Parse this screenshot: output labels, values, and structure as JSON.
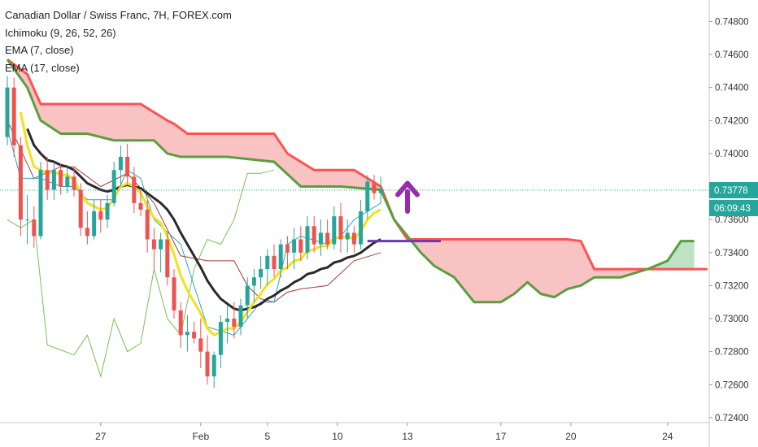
{
  "legend": {
    "title": "Canadian Dollar / Swiss Franc, 7H, FOREX.com",
    "ichimoku": "Ichimoku (9, 26, 52, 26)",
    "ema7": "EMA (7, close)",
    "ema17": "EMA (17, close)"
  },
  "colors": {
    "up": "#26a69a",
    "down": "#ef5350",
    "ema7": "#f5e11a",
    "ema17": "#2a2a2a",
    "kumo_bear_fill": "#f9bcbc",
    "kumo_bull_fill": "#b7e0be",
    "senkou_a": "#ff5252",
    "senkou_b": "#5b9e3f",
    "tenkan": "#27a8b8",
    "kijun": "#a23b3b",
    "chikou": "#7cbf4f",
    "arrow": "#9c27b0",
    "level_line": "#673ab7",
    "price_tag": "#26a69a"
  },
  "chart_data": {
    "type": "candlestick",
    "title": "Canadian Dollar / Swiss Franc, 7H, FOREX.com",
    "ylim": [
      0.7237,
      0.7493
    ],
    "y_ticks": [
      "0.74800",
      "0.74600",
      "0.74400",
      "0.74200",
      "0.74000",
      "0.73600",
      "0.73400",
      "0.73200",
      "0.73000",
      "0.72800",
      "0.72600",
      "0.72400"
    ],
    "x_ticks": [
      "27",
      "Feb",
      "5",
      "10",
      "13",
      "17",
      "20",
      "24"
    ],
    "last_price": "0.73778",
    "countdown": "06:09:43",
    "candles": [
      [
        0.741,
        0.7447,
        0.7405,
        0.744
      ],
      [
        0.744,
        0.7446,
        0.7398,
        0.7405
      ],
      [
        0.7405,
        0.741,
        0.735,
        0.736
      ],
      [
        0.736,
        0.7375,
        0.7345,
        0.736
      ],
      [
        0.736,
        0.7368,
        0.7343,
        0.735
      ],
      [
        0.735,
        0.7395,
        0.7348,
        0.739
      ],
      [
        0.739,
        0.7398,
        0.7372,
        0.7378
      ],
      [
        0.7378,
        0.7395,
        0.7372,
        0.739
      ],
      [
        0.739,
        0.7394,
        0.7375,
        0.738
      ],
      [
        0.738,
        0.7392,
        0.7376,
        0.7386
      ],
      [
        0.7386,
        0.7392,
        0.7374,
        0.7378
      ],
      [
        0.7378,
        0.7382,
        0.735,
        0.7355
      ],
      [
        0.7355,
        0.7365,
        0.7345,
        0.735
      ],
      [
        0.735,
        0.7372,
        0.7348,
        0.7365
      ],
      [
        0.7365,
        0.7372,
        0.7352,
        0.736
      ],
      [
        0.736,
        0.7375,
        0.7355,
        0.737
      ],
      [
        0.737,
        0.7395,
        0.7368,
        0.739
      ],
      [
        0.739,
        0.7405,
        0.738,
        0.7398
      ],
      [
        0.7398,
        0.7406,
        0.7382,
        0.7386
      ],
      [
        0.7386,
        0.7392,
        0.7364,
        0.737
      ],
      [
        0.737,
        0.7378,
        0.7362,
        0.7366
      ],
      [
        0.7366,
        0.7372,
        0.734,
        0.7348
      ],
      [
        0.7348,
        0.7355,
        0.733,
        0.7342
      ],
      [
        0.7342,
        0.7352,
        0.7328,
        0.7348
      ],
      [
        0.7348,
        0.7352,
        0.732,
        0.7325
      ],
      [
        0.7325,
        0.733,
        0.73,
        0.7305
      ],
      [
        0.7305,
        0.731,
        0.7282,
        0.729
      ],
      [
        0.729,
        0.7302,
        0.728,
        0.7292
      ],
      [
        0.7292,
        0.7298,
        0.7285,
        0.7288
      ],
      [
        0.7288,
        0.73,
        0.727,
        0.728
      ],
      [
        0.728,
        0.729,
        0.726,
        0.7265
      ],
      [
        0.7265,
        0.728,
        0.7258,
        0.7278
      ],
      [
        0.7278,
        0.7302,
        0.727,
        0.7298
      ],
      [
        0.7298,
        0.7308,
        0.7285,
        0.73
      ],
      [
        0.73,
        0.731,
        0.7288,
        0.7295
      ],
      [
        0.7295,
        0.7312,
        0.729,
        0.7308
      ],
      [
        0.7308,
        0.7325,
        0.73,
        0.732
      ],
      [
        0.732,
        0.733,
        0.731,
        0.7325
      ],
      [
        0.7325,
        0.7338,
        0.7318,
        0.733
      ],
      [
        0.733,
        0.7342,
        0.732,
        0.7338
      ],
      [
        0.7338,
        0.7345,
        0.7325,
        0.733
      ],
      [
        0.733,
        0.7348,
        0.7325,
        0.7345
      ],
      [
        0.7345,
        0.735,
        0.733,
        0.734
      ],
      [
        0.734,
        0.7355,
        0.733,
        0.7348
      ],
      [
        0.7348,
        0.7356,
        0.7335,
        0.734
      ],
      [
        0.734,
        0.7362,
        0.7336,
        0.7356
      ],
      [
        0.7356,
        0.7362,
        0.734,
        0.7345
      ],
      [
        0.7345,
        0.736,
        0.7338,
        0.7352
      ],
      [
        0.7352,
        0.736,
        0.7342,
        0.7345
      ],
      [
        0.7345,
        0.7368,
        0.7342,
        0.7362
      ],
      [
        0.7362,
        0.737,
        0.734,
        0.7348
      ],
      [
        0.7348,
        0.736,
        0.734,
        0.7352
      ],
      [
        0.7352,
        0.7356,
        0.734,
        0.7345
      ],
      [
        0.7345,
        0.7372,
        0.7342,
        0.7365
      ],
      [
        0.7365,
        0.7387,
        0.736,
        0.7383
      ],
      [
        0.7383,
        0.7387,
        0.7372,
        0.7376
      ],
      [
        0.7376,
        0.7386,
        0.737,
        0.7378
      ]
    ],
    "ema7": [
      null,
      null,
      0.7425,
      0.7405,
      0.7392,
      0.739,
      0.7388,
      0.7389,
      0.7387,
      0.7387,
      0.7384,
      0.7376,
      0.737,
      0.7368,
      0.7366,
      0.7367,
      0.7373,
      0.738,
      0.7382,
      0.738,
      0.7376,
      0.7368,
      0.7361,
      0.7358,
      0.735,
      0.7339,
      0.7326,
      0.7317,
      0.731,
      0.7303,
      0.7294,
      0.729,
      0.7292,
      0.7294,
      0.7294,
      0.7298,
      0.7304,
      0.731,
      0.7315,
      0.7321,
      0.7324,
      0.7329,
      0.7331,
      0.7335,
      0.7336,
      0.7341,
      0.7342,
      0.7344,
      0.7344,
      0.7349,
      0.7349,
      0.735,
      0.7348,
      0.7353,
      0.736,
      0.7364,
      0.7366
    ],
    "ema17": [
      null,
      null,
      null,
      0.7415,
      0.7405,
      0.74,
      0.7396,
      0.7395,
      0.7393,
      0.7392,
      0.739,
      0.7386,
      0.7382,
      0.738,
      0.7378,
      0.7377,
      0.7378,
      0.738,
      0.7381,
      0.738,
      0.7379,
      0.7376,
      0.7373,
      0.737,
      0.7366,
      0.736,
      0.7352,
      0.7345,
      0.7338,
      0.7331,
      0.7323,
      0.7317,
      0.7312,
      0.7309,
      0.7306,
      0.7305,
      0.7306,
      0.7307,
      0.7309,
      0.7312,
      0.7314,
      0.7317,
      0.7319,
      0.7322,
      0.7324,
      0.7327,
      0.7328,
      0.733,
      0.7331,
      0.7334,
      0.7335,
      0.7337,
      0.7338,
      0.734,
      0.7343,
      0.7346,
      0.7348
    ],
    "senkou_a": [
      [
        0,
        0.7457
      ],
      [
        3,
        0.7448
      ],
      [
        5,
        0.743
      ],
      [
        10,
        0.743
      ],
      [
        20,
        0.743
      ],
      [
        24,
        0.742
      ],
      [
        25,
        0.7418
      ],
      [
        27,
        0.7412
      ],
      [
        33,
        0.7412
      ],
      [
        40,
        0.7412
      ],
      [
        42,
        0.74
      ],
      [
        46,
        0.739
      ],
      [
        52,
        0.739
      ],
      [
        56,
        0.738
      ],
      [
        58,
        0.736
      ],
      [
        60,
        0.7348
      ],
      [
        70,
        0.7348
      ],
      [
        84,
        0.7348
      ],
      [
        86,
        0.7347
      ],
      [
        88,
        0.733
      ],
      [
        96,
        0.733
      ],
      [
        105,
        0.733
      ]
    ],
    "senkou_b": [
      [
        0,
        0.7457
      ],
      [
        3,
        0.744
      ],
      [
        5,
        0.742
      ],
      [
        8,
        0.7412
      ],
      [
        12,
        0.7412
      ],
      [
        16,
        0.7408
      ],
      [
        22,
        0.7408
      ],
      [
        24,
        0.74
      ],
      [
        26,
        0.7398
      ],
      [
        33,
        0.7398
      ],
      [
        40,
        0.7395
      ],
      [
        44,
        0.738
      ],
      [
        50,
        0.738
      ],
      [
        56,
        0.7378
      ],
      [
        58,
        0.736
      ],
      [
        62,
        0.734
      ],
      [
        64,
        0.7332
      ],
      [
        67,
        0.7325
      ],
      [
        70,
        0.731
      ],
      [
        74,
        0.731
      ],
      [
        76,
        0.7315
      ],
      [
        78,
        0.7322
      ],
      [
        80,
        0.7315
      ],
      [
        82,
        0.7313
      ],
      [
        84,
        0.7318
      ],
      [
        86,
        0.732
      ],
      [
        88,
        0.7325
      ],
      [
        92,
        0.7325
      ],
      [
        96,
        0.733
      ],
      [
        99,
        0.7335
      ],
      [
        101,
        0.7347
      ],
      [
        103,
        0.7347
      ]
    ],
    "tenkan": [
      [
        0,
        0.7415
      ],
      [
        2,
        0.7385
      ],
      [
        5,
        0.7385
      ],
      [
        8,
        0.738
      ],
      [
        10,
        0.738
      ],
      [
        12,
        0.7372
      ],
      [
        16,
        0.7372
      ],
      [
        18,
        0.739
      ],
      [
        20,
        0.7385
      ],
      [
        22,
        0.736
      ],
      [
        26,
        0.7345
      ],
      [
        30,
        0.7295
      ],
      [
        34,
        0.729
      ],
      [
        36,
        0.73
      ],
      [
        38,
        0.731
      ],
      [
        40,
        0.731
      ],
      [
        42,
        0.7345
      ],
      [
        44,
        0.735
      ],
      [
        48,
        0.7345
      ],
      [
        50,
        0.735
      ],
      [
        52,
        0.736
      ],
      [
        56,
        0.737
      ]
    ],
    "kijun": [
      [
        0,
        0.742
      ],
      [
        4,
        0.7385
      ],
      [
        8,
        0.7392
      ],
      [
        10,
        0.7392
      ],
      [
        14,
        0.738
      ],
      [
        18,
        0.7388
      ],
      [
        22,
        0.737
      ],
      [
        26,
        0.7338
      ],
      [
        30,
        0.7335
      ],
      [
        34,
        0.7335
      ],
      [
        36,
        0.732
      ],
      [
        38,
        0.7312
      ],
      [
        40,
        0.731
      ],
      [
        42,
        0.7316
      ],
      [
        44,
        0.7318
      ],
      [
        48,
        0.732
      ],
      [
        52,
        0.7335
      ],
      [
        56,
        0.734
      ]
    ],
    "chikou": [
      [
        0,
        0.736
      ],
      [
        2,
        0.7355
      ],
      [
        4,
        0.736
      ],
      [
        6,
        0.7284
      ],
      [
        8,
        0.7281
      ],
      [
        10,
        0.7278
      ],
      [
        12,
        0.729
      ],
      [
        14,
        0.7265
      ],
      [
        16,
        0.73
      ],
      [
        18,
        0.728
      ],
      [
        20,
        0.7285
      ],
      [
        22,
        0.733
      ],
      [
        24,
        0.73
      ],
      [
        26,
        0.729
      ],
      [
        28,
        0.733
      ],
      [
        30,
        0.7348
      ],
      [
        32,
        0.7345
      ],
      [
        34,
        0.736
      ],
      [
        36,
        0.7388
      ],
      [
        38,
        0.7388
      ],
      [
        40,
        0.739
      ]
    ],
    "level": {
      "value": 0.7347,
      "from": 54,
      "to": 65
    },
    "arrow": {
      "at": 60,
      "from_value": 0.7365,
      "to_value": 0.738,
      "direction": "up"
    }
  }
}
